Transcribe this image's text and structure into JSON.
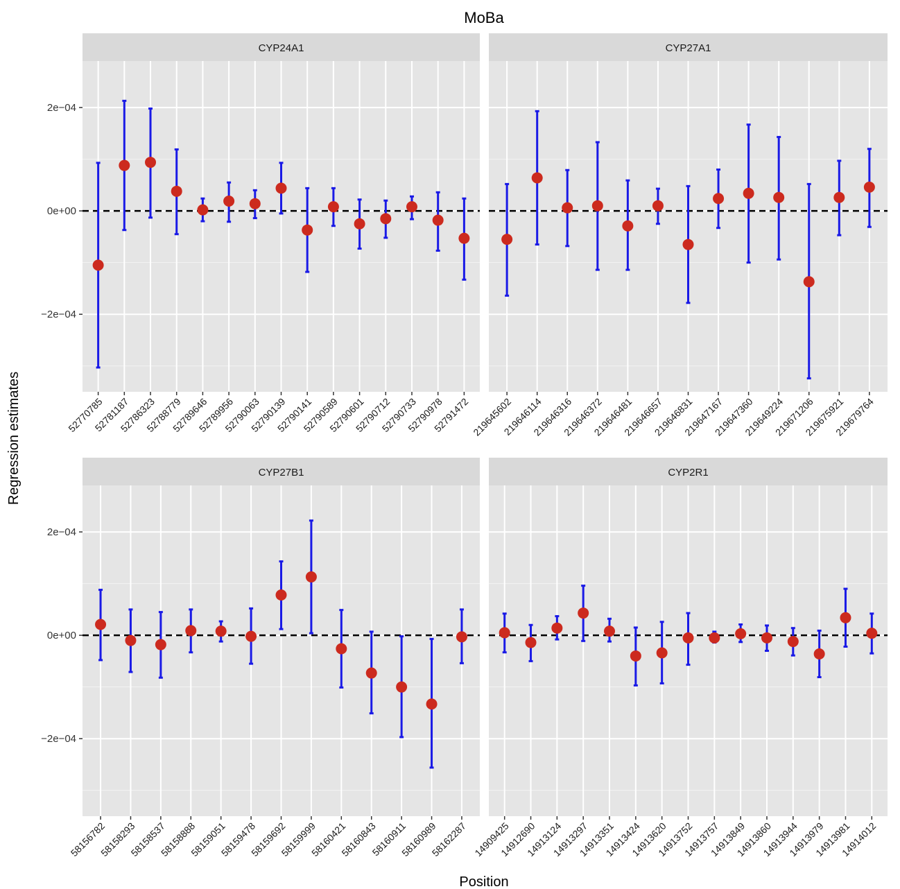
{
  "chart_data": {
    "type": "errorbar",
    "title": "MoBa",
    "xlabel": "Position",
    "ylabel": "Regression estimates",
    "y_ticks": [
      -0.0002,
      0,
      0.0002
    ],
    "y_tick_labels": [
      "−2e−04",
      "0e+00",
      "2e−04"
    ],
    "ylim": [
      -0.00035,
      0.00029
    ],
    "reference_line": 0,
    "colors": {
      "point": "#cc2a1e",
      "errorbar": "#1a1ae6",
      "panel_bg": "#e5e5e5",
      "strip_bg": "#d9d9d9",
      "grid": "#ffffff",
      "reference_line": "#000000"
    },
    "panels": [
      {
        "name": "CYP24A1",
        "positions": [
          "52770785",
          "52781187",
          "52786323",
          "52788779",
          "52789646",
          "52789956",
          "52790063",
          "52790139",
          "52790141",
          "52790589",
          "52790601",
          "52790712",
          "52790733",
          "52790978",
          "52791472"
        ],
        "estimates": [
          -0.000105,
          8.8e-05,
          9.4e-05,
          3.8e-05,
          2e-06,
          1.9e-05,
          1.4e-05,
          4.4e-05,
          -3.7e-05,
          8e-06,
          -2.5e-05,
          -1.5e-05,
          8e-06,
          -1.8e-05,
          -5.3e-05
        ],
        "lower": [
          -0.000303,
          -3.7e-05,
          -1.3e-05,
          -4.5e-05,
          -2e-05,
          -2.1e-05,
          -1.4e-05,
          -5e-06,
          -0.000118,
          -2.9e-05,
          -7.3e-05,
          -5.2e-05,
          -1.6e-05,
          -7.7e-05,
          -0.000133
        ],
        "upper": [
          9.3e-05,
          0.000213,
          0.000198,
          0.000119,
          2.4e-05,
          5.5e-05,
          4e-05,
          9.3e-05,
          4.4e-05,
          4.4e-05,
          2.2e-05,
          2e-05,
          2.8e-05,
          3.6e-05,
          2.4e-05
        ]
      },
      {
        "name": "CYP27A1",
        "positions": [
          "219645602",
          "219646114",
          "219646316",
          "219646372",
          "219646481",
          "219646657",
          "219646831",
          "219647167",
          "219647360",
          "219649224",
          "219671206",
          "219675921",
          "219679764"
        ],
        "estimates": [
          -5.5e-05,
          6.4e-05,
          6e-06,
          1e-05,
          -2.9e-05,
          1e-05,
          -6.5e-05,
          2.4e-05,
          3.4e-05,
          2.6e-05,
          -0.000137,
          2.6e-05,
          4.6e-05
        ],
        "lower": [
          -0.000164,
          -6.5e-05,
          -6.8e-05,
          -0.000114,
          -0.000114,
          -2.5e-05,
          -0.000178,
          -3.3e-05,
          -0.0001,
          -9.4e-05,
          -0.000324,
          -4.7e-05,
          -3.1e-05
        ],
        "upper": [
          5.2e-05,
          0.000193,
          7.9e-05,
          0.000133,
          5.9e-05,
          4.3e-05,
          4.8e-05,
          8e-05,
          0.000167,
          0.000143,
          5.2e-05,
          9.7e-05,
          0.00012
        ]
      },
      {
        "name": "CYP27B1",
        "positions": [
          "58156782",
          "58158293",
          "58158537",
          "58158888",
          "58159051",
          "58159478",
          "58159692",
          "58159999",
          "58160421",
          "58160843",
          "58160911",
          "58160989",
          "58162287"
        ],
        "estimates": [
          2.1e-05,
          -1e-05,
          -1.8e-05,
          9e-06,
          8e-06,
          -2e-06,
          7.8e-05,
          0.000113,
          -2.6e-05,
          -7.3e-05,
          -0.0001,
          -0.000133,
          -3e-06
        ],
        "lower": [
          -4.8e-05,
          -7.1e-05,
          -8.2e-05,
          -3.3e-05,
          -1.2e-05,
          -5.5e-05,
          1.2e-05,
          4e-06,
          -0.000101,
          -0.000151,
          -0.000197,
          -0.000256,
          -5.4e-05
        ],
        "upper": [
          8.8e-05,
          5e-05,
          4.5e-05,
          5e-05,
          2.7e-05,
          5.2e-05,
          0.000143,
          0.000222,
          4.9e-05,
          7e-06,
          -2e-06,
          -7e-06,
          5e-05
        ]
      },
      {
        "name": "CYP2R1",
        "positions": [
          "14909425",
          "14912690",
          "14913124",
          "14913297",
          "14913351",
          "14913424",
          "14913620",
          "14913752",
          "14913757",
          "14913849",
          "14913860",
          "14913944",
          "14913979",
          "14913981",
          "14914012"
        ],
        "estimates": [
          5e-06,
          -1.4e-05,
          1.4e-05,
          4.3e-05,
          8e-06,
          -4e-05,
          -3.4e-05,
          -5e-06,
          -5e-06,
          3e-06,
          -5e-06,
          -1.2e-05,
          -3.6e-05,
          3.4e-05,
          4e-06
        ],
        "lower": [
          -3.3e-05,
          -5e-05,
          -8e-06,
          -1.1e-05,
          -1.2e-05,
          -9.7e-05,
          -9.3e-05,
          -5.7e-05,
          -1.4e-05,
          -1.3e-05,
          -3e-05,
          -3.9e-05,
          -8.1e-05,
          -2.2e-05,
          -3.5e-05
        ],
        "upper": [
          4.2e-05,
          2e-05,
          3.7e-05,
          9.6e-05,
          3.2e-05,
          1.5e-05,
          2.6e-05,
          4.3e-05,
          7e-06,
          2.1e-05,
          1.9e-05,
          1.4e-05,
          9e-06,
          9e-05,
          4.2e-05
        ]
      }
    ]
  }
}
